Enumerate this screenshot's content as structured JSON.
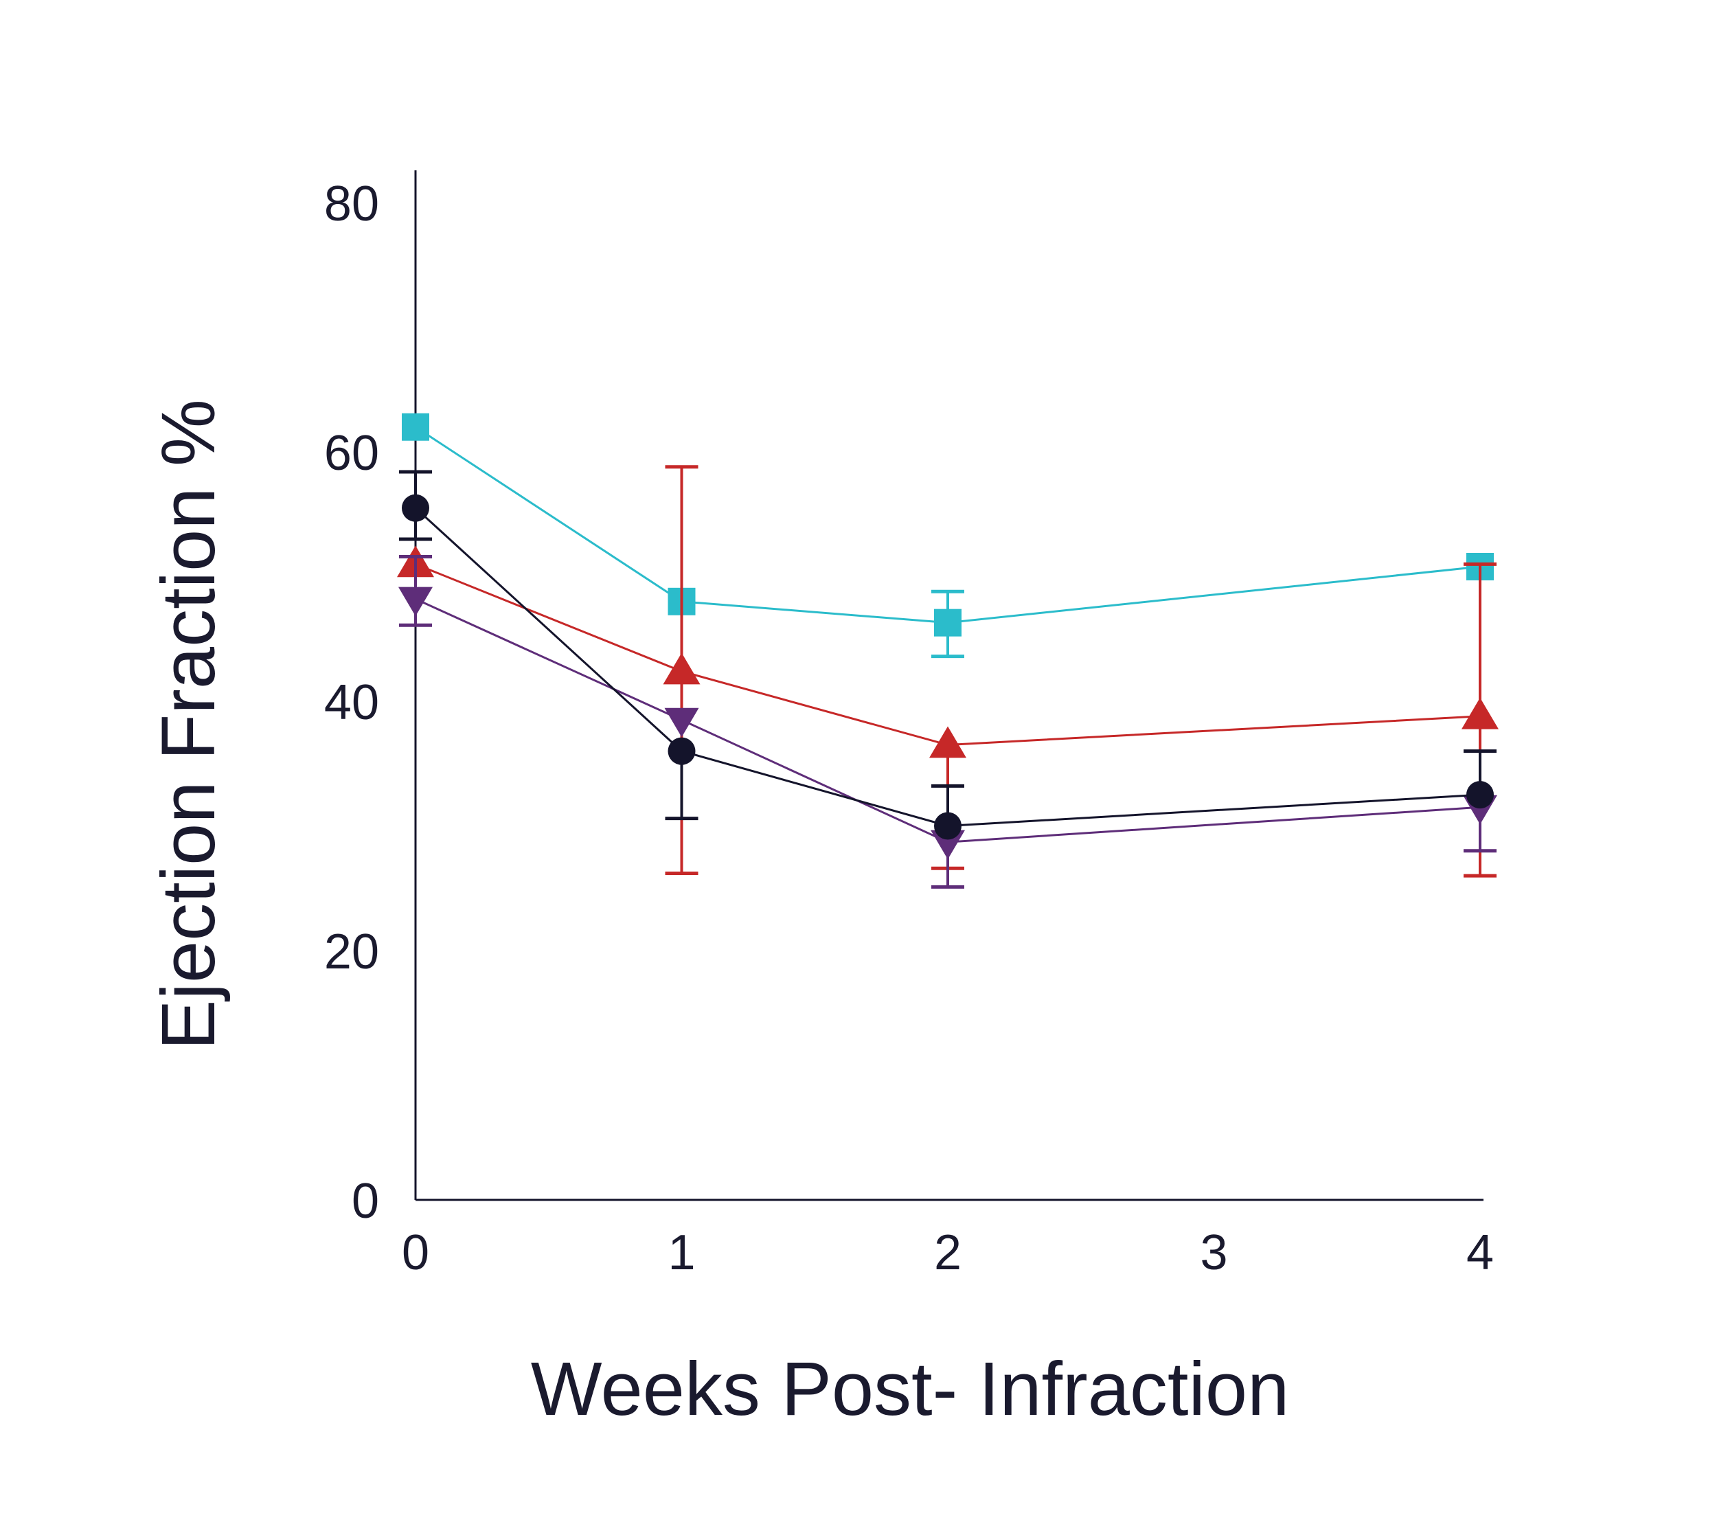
{
  "chart_data": {
    "type": "line",
    "title": "",
    "xlabel": "Weeks Post- Infraction",
    "ylabel": "Ejection Fraction %",
    "xlim": [
      0,
      4
    ],
    "ylim": [
      0,
      80
    ],
    "x_ticks": [
      0,
      1,
      2,
      3,
      4
    ],
    "x_tick_labels": [
      "0",
      "1",
      "2",
      "3",
      "4"
    ],
    "y_ticks": [
      0,
      20,
      40,
      60,
      80
    ],
    "y_tick_labels": [
      "0",
      "20",
      "40",
      "60",
      "80"
    ],
    "grid": false,
    "legend": "none",
    "series": [
      {
        "name": "teal-series",
        "color": "#2bbccb",
        "marker": "square",
        "x": [
          0,
          1,
          2,
          4
        ],
        "y": [
          62,
          48,
          46.3,
          50.8
        ],
        "err_lower": [
          null,
          null,
          43.6,
          null
        ],
        "err_upper": [
          null,
          null,
          48.8,
          null
        ]
      },
      {
        "name": "red-series",
        "color": "#c62828",
        "marker": "triangle-up",
        "x": [
          0,
          1,
          2,
          4
        ],
        "y": [
          51,
          42.4,
          36.5,
          38.8
        ],
        "err_lower": [
          null,
          26.2,
          26.6,
          26
        ],
        "err_upper": [
          null,
          58.8,
          null,
          51
        ]
      },
      {
        "name": "black-series",
        "color": "#14142b",
        "marker": "circle",
        "x": [
          0,
          1,
          2,
          4
        ],
        "y": [
          55.5,
          36,
          30,
          32.5
        ],
        "err_lower": [
          53,
          30.6,
          null,
          null
        ],
        "err_upper": [
          58.4,
          null,
          33.2,
          36
        ]
      },
      {
        "name": "purple-series",
        "color": "#5e2d79",
        "marker": "triangle-down",
        "x": [
          0,
          1,
          2,
          4
        ],
        "y": [
          48.2,
          38.5,
          28.7,
          31.5
        ],
        "err_lower": [
          46.1,
          null,
          25.1,
          28
        ],
        "err_upper": [
          51.6,
          null,
          null,
          null
        ]
      }
    ]
  }
}
